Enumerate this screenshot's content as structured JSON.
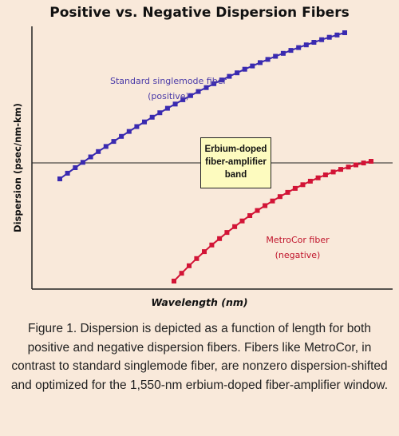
{
  "chart_data": {
    "type": "scatter",
    "title": "Positive vs. Negative Dispersion Fibers",
    "xlabel": "Wavelength (nm)",
    "ylabel": "Dispersion (psec/nm-km)",
    "xlim": [
      0,
      100
    ],
    "ylim": [
      -100,
      100
    ],
    "grid": false,
    "series": [
      {
        "name": "Standard singlemode fiber (positive)",
        "labels": [
          "Standard singlemode fiber",
          "(positive)"
        ],
        "color": "#3a2ab0",
        "x": [
          0,
          2.7,
          5.4,
          8.1,
          10.8,
          13.5,
          16.2,
          18.9,
          21.6,
          24.3,
          27.0,
          29.7,
          32.4,
          35.1,
          37.8,
          40.5,
          43.2,
          45.9,
          48.6,
          51.4,
          54.1,
          56.8,
          59.5,
          62.2,
          64.9,
          67.6,
          70.3,
          73.0,
          75.7,
          78.4,
          81.1,
          83.8,
          86.5,
          89.2,
          91.9,
          94.6,
          97.3,
          100
        ],
        "y": [
          -13.9,
          -9.3,
          -4.8,
          -0.4,
          4.0,
          8.4,
          12.6,
          16.7,
          20.8,
          24.8,
          28.8,
          32.6,
          36.4,
          40.1,
          43.7,
          47.2,
          50.7,
          54.1,
          57.4,
          60.6,
          63.8,
          66.8,
          69.8,
          72.7,
          75.6,
          78.3,
          81.0,
          83.6,
          86.2,
          88.6,
          91.0,
          93.3,
          95.5,
          97.6,
          99.7,
          101.7,
          103.6,
          105.4
        ]
      },
      {
        "name": "MetroCor fiber (negative)",
        "labels": [
          "MetroCor fiber",
          "(negative)"
        ],
        "color": "#d21436",
        "x": [
          0,
          3.9,
          7.7,
          11.5,
          15.4,
          19.2,
          23.1,
          26.9,
          30.8,
          34.6,
          38.5,
          42.3,
          46.2,
          50.0,
          53.8,
          57.7,
          61.5,
          65.4,
          69.2,
          73.1,
          76.9,
          80.8,
          84.6,
          88.5,
          92.3,
          96.2,
          100
        ],
        "y": [
          -100,
          -92,
          -84.3,
          -76.9,
          -69.8,
          -63.0,
          -56.4,
          -50.1,
          -44.1,
          -38.3,
          -32.8,
          -27.6,
          -22.6,
          -17.8,
          -13.3,
          -9.0,
          -4.9,
          -1.1,
          2.5,
          5.9,
          9.0,
          11.9,
          14.6,
          17.0,
          19.2,
          21.2,
          22.9
        ]
      }
    ],
    "band_label": [
      "Erbium-doped",
      "fiber-amplifier",
      "band"
    ]
  },
  "caption": "Figure 1. Dispersion is depicted as a function of length for both positive and negative dispersion fibers. Fibers like MetroCor, in contrast to standard singlemode fiber, are nonzero dispersion-shifted and optimized for the 1,550-nm erbium-doped fiber-amplifier window."
}
